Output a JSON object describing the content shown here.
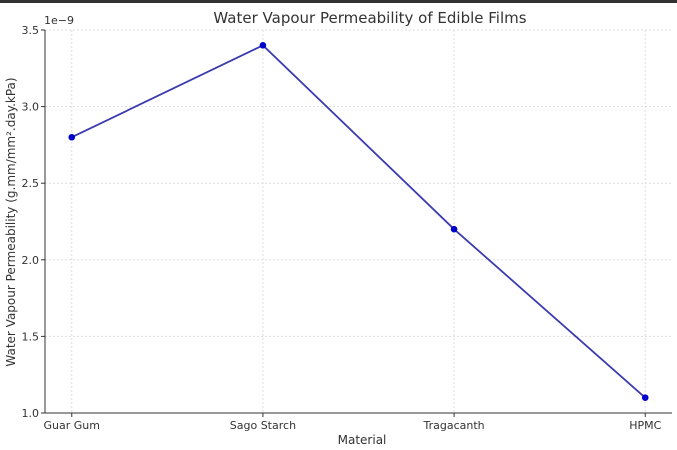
{
  "chart_data": {
    "type": "line",
    "title": "Water Vapour Permeability of Edible Films",
    "xlabel": "Material",
    "ylabel": "Water Vapour Permeability (g.mm/mm².day.kPa)",
    "y_offset_label": "1e−9",
    "categories": [
      "Guar Gum",
      "Sago Starch",
      "Tragacanth",
      "HPMC"
    ],
    "series": [
      {
        "name": "Water Vapour Permeability",
        "values": [
          2.8,
          3.4,
          2.2,
          1.1
        ],
        "color": "#0000cc",
        "line_color": "#3b3bb0"
      }
    ],
    "ylim": [
      1.0,
      3.5
    ],
    "yticks": [
      "1.0",
      "1.5",
      "2.0",
      "2.5",
      "3.0",
      "3.5"
    ],
    "ytick_values": [
      1.0,
      1.5,
      2.0,
      2.5,
      3.0,
      3.5
    ],
    "grid": true
  }
}
